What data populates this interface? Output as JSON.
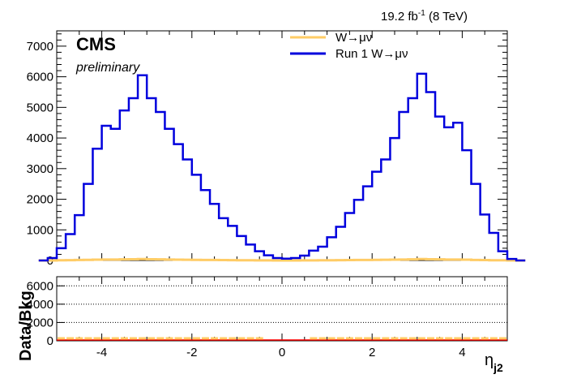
{
  "header": {
    "lumi_value": "19.2 fb",
    "lumi_exp": "-1",
    "lumi_energy": " (8 TeV)",
    "cms_label": "CMS",
    "preliminary_label": "preliminary"
  },
  "legend": {
    "entries": [
      {
        "label": "W→μν",
        "color": "#ffcc66"
      },
      {
        "label": "Run 1 W→μν",
        "color": "#0000dd"
      }
    ]
  },
  "ratio": {
    "ylabel": "Data/Bkg",
    "yticks": [
      "0",
      "2000",
      "4000",
      "6000"
    ],
    "line_color": "#ff0000"
  },
  "xlabel": {
    "main": "η",
    "sub": "j2"
  },
  "chart_data": {
    "type": "histogram",
    "xlim": [
      -5,
      5
    ],
    "ylim": [
      0,
      7500
    ],
    "xticks": [
      -4,
      -2,
      0,
      2,
      4
    ],
    "yticks": [
      0,
      1000,
      2000,
      3000,
      4000,
      5000,
      6000,
      7000
    ],
    "bin_width": 0.2,
    "series": [
      {
        "name": "Run 1 W→μν",
        "color": "#0000dd",
        "values": [
          0,
          80,
          400,
          860,
          1480,
          2500,
          3650,
          4400,
          4300,
          4900,
          5300,
          6050,
          5300,
          4850,
          4300,
          3800,
          3300,
          2800,
          2300,
          1850,
          1380,
          1130,
          800,
          520,
          300,
          170,
          80,
          60,
          80,
          160,
          320,
          450,
          760,
          1100,
          1550,
          1980,
          2420,
          2900,
          3300,
          4000,
          4850,
          5300,
          6100,
          5500,
          4700,
          4350,
          4500,
          3600,
          2500,
          1500,
          900,
          300,
          50,
          0
        ]
      },
      {
        "name": "W→μν",
        "color": "#ffcc66",
        "values": [
          0,
          0,
          5,
          10,
          15,
          20,
          25,
          30,
          30,
          35,
          40,
          45,
          40,
          35,
          30,
          25,
          22,
          20,
          18,
          15,
          12,
          10,
          8,
          5,
          3,
          2,
          1,
          1,
          1,
          2,
          3,
          5,
          8,
          10,
          12,
          15,
          18,
          20,
          22,
          25,
          30,
          35,
          45,
          40,
          35,
          30,
          30,
          25,
          18,
          12,
          8,
          5,
          1,
          0
        ]
      }
    ],
    "ratio_ylim": [
      0,
      7000
    ],
    "ratio_yticks": [
      0,
      2000,
      4000,
      6000
    ]
  }
}
